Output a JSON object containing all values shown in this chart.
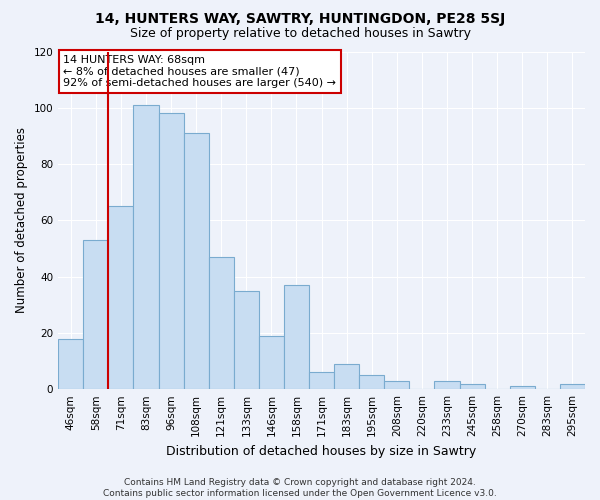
{
  "title": "14, HUNTERS WAY, SAWTRY, HUNTINGDON, PE28 5SJ",
  "subtitle": "Size of property relative to detached houses in Sawtry",
  "xlabel": "Distribution of detached houses by size in Sawtry",
  "ylabel": "Number of detached properties",
  "categories": [
    "46sqm",
    "58sqm",
    "71sqm",
    "83sqm",
    "96sqm",
    "108sqm",
    "121sqm",
    "133sqm",
    "146sqm",
    "158sqm",
    "171sqm",
    "183sqm",
    "195sqm",
    "208sqm",
    "220sqm",
    "233sqm",
    "245sqm",
    "258sqm",
    "270sqm",
    "283sqm",
    "295sqm"
  ],
  "values": [
    18,
    53,
    65,
    101,
    98,
    91,
    47,
    35,
    19,
    37,
    6,
    9,
    5,
    3,
    0,
    3,
    2,
    0,
    1,
    0,
    2
  ],
  "bar_color": "#c8ddf2",
  "bar_edge_color": "#7aabcf",
  "vline_color": "#cc0000",
  "vline_position": 1.5,
  "ylim": [
    0,
    120
  ],
  "yticks": [
    0,
    20,
    40,
    60,
    80,
    100,
    120
  ],
  "annotation_title": "14 HUNTERS WAY: 68sqm",
  "annotation_line1": "← 8% of detached houses are smaller (47)",
  "annotation_line2": "92% of semi-detached houses are larger (540) →",
  "footer_line1": "Contains HM Land Registry data © Crown copyright and database right 2024.",
  "footer_line2": "Contains public sector information licensed under the Open Government Licence v3.0.",
  "title_fontsize": 10,
  "subtitle_fontsize": 9,
  "xlabel_fontsize": 9,
  "ylabel_fontsize": 8.5,
  "tick_fontsize": 7.5,
  "annotation_fontsize": 8,
  "footer_fontsize": 6.5,
  "background_color": "#eef2fa",
  "grid_color": "#ffffff",
  "ann_box_edge_color": "#cc0000"
}
